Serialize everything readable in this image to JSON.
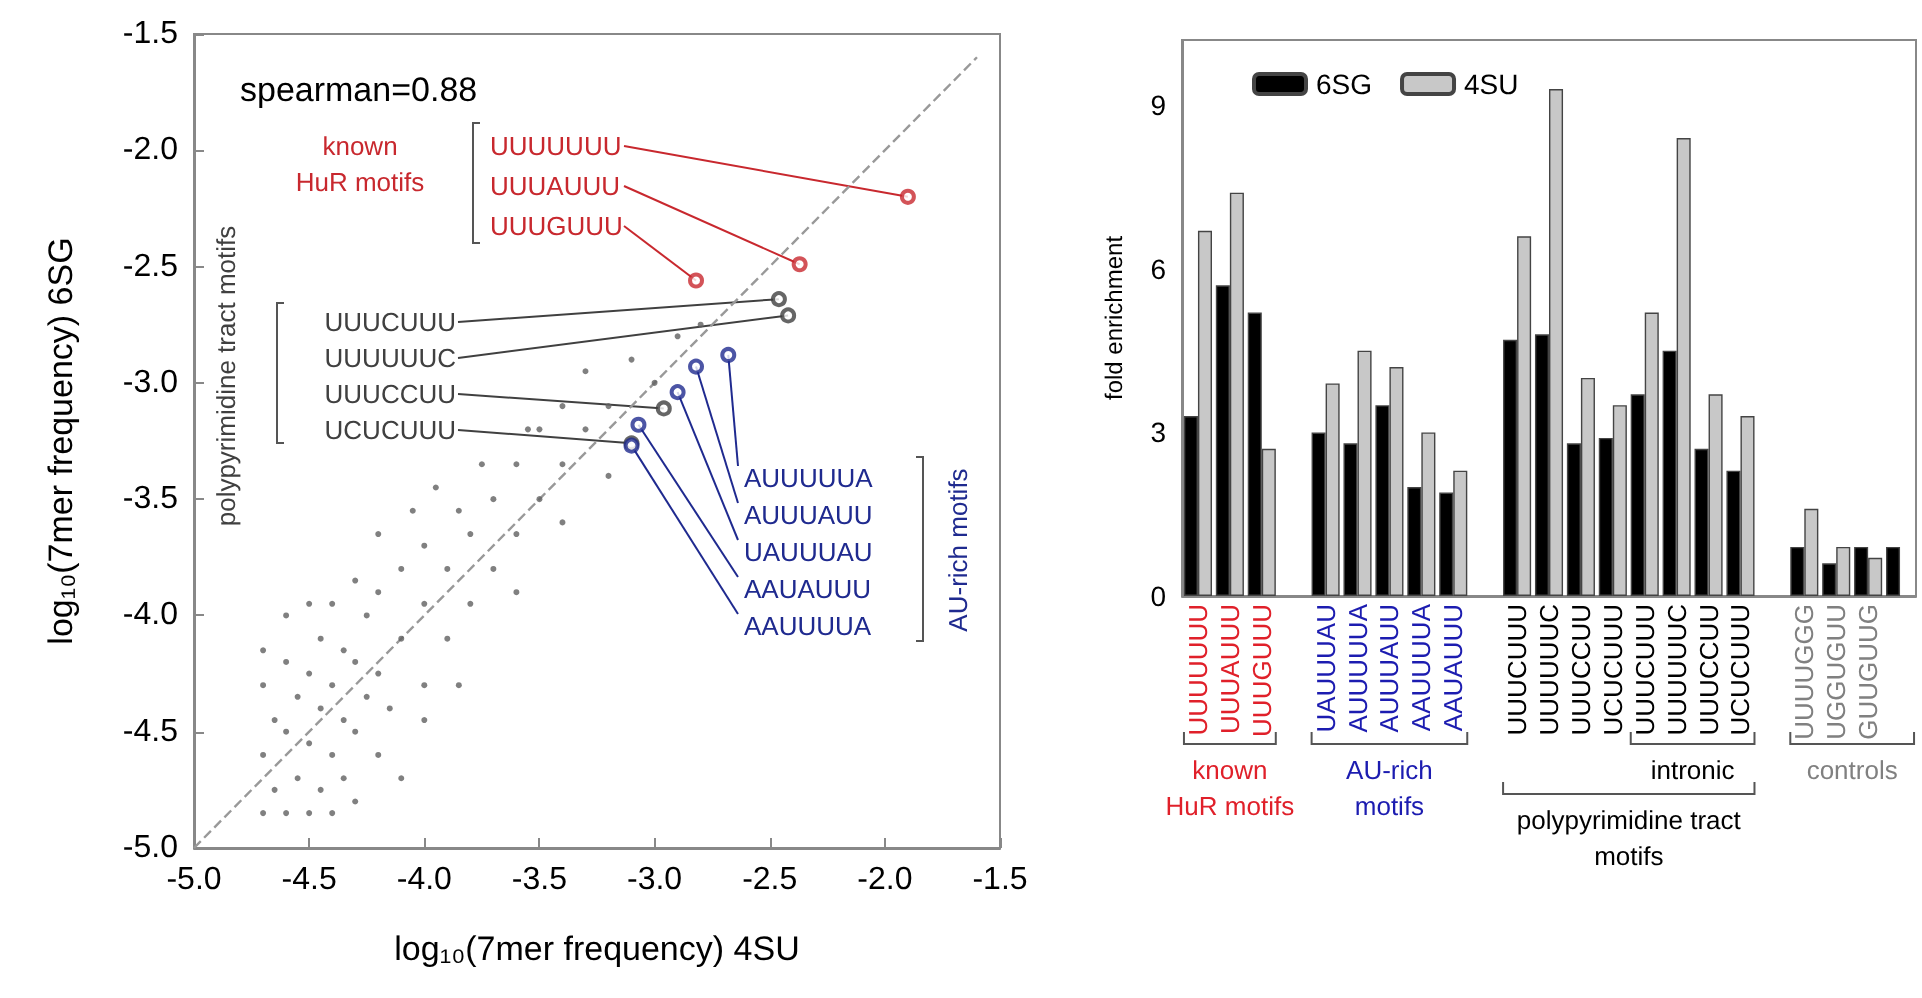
{
  "chart_data": [
    {
      "type": "scatter",
      "xlabel": "log₁₀(7mer frequency) 4SU",
      "ylabel": "log₁₀(7mer frequency) 6SG",
      "xlim": [
        -5,
        -1.5
      ],
      "xticks": [
        {
          "value": -5,
          "label": "-5.0"
        },
        -4.5,
        {
          "value": -4,
          "label": "-4.0"
        },
        -3.5,
        {
          "value": -3,
          "label": "-3.0"
        },
        -2.5,
        {
          "value": -2,
          "label": "-2.0"
        },
        -1.5
      ],
      "ylim": [
        -5,
        -1.5
      ],
      "yticks": [
        {
          "value": -5,
          "label": "-5.0"
        },
        -4.5,
        {
          "value": -4,
          "label": "-4.0"
        },
        -3.5,
        {
          "value": -3,
          "label": "-3.0"
        },
        -2.5,
        {
          "value": -2,
          "label": "-2.0"
        },
        -1.5
      ],
      "grid": false,
      "legend": false,
      "marker": "circle",
      "series": [
        {
          "color": "#606060",
          "x": [
            -4.7,
            -4.7,
            -4.7,
            -4.7,
            -4.65,
            -4.65,
            -4.6,
            -4.6,
            -4.6,
            -4.6,
            -4.55,
            -4.55,
            -4.5,
            -4.5,
            -4.5,
            -4.5,
            -4.45,
            -4.45,
            -4.45,
            -4.4,
            -4.4,
            -4.4,
            -4.4,
            -4.35,
            -4.35,
            -4.35,
            -4.3,
            -4.3,
            -4.3,
            -4.3,
            -4.25,
            -4.25,
            -4.2,
            -4.2,
            -4.2,
            -4.2,
            -4.15,
            -4.1,
            -4.1,
            -4.1,
            -4.05,
            -4.0,
            -4.0,
            -4.0,
            -3.95,
            -3.9,
            -3.9,
            -3.85,
            -3.8,
            -3.8,
            -3.75,
            -3.7,
            -3.7,
            -3.6,
            -3.6,
            -3.55,
            -3.5,
            -3.5,
            -3.4,
            -3.4,
            -3.3,
            -3.3,
            -3.2,
            -3.1,
            -3.0,
            -2.9,
            -2.8,
            -3.6,
            -3.4,
            -3.2,
            -4.0,
            -3.85
          ],
          "values": [
            -4.85,
            -4.6,
            -4.3,
            -4.15,
            -4.75,
            -4.45,
            -4.85,
            -4.5,
            -4.2,
            -4.0,
            -4.7,
            -4.35,
            -4.85,
            -4.55,
            -4.25,
            -3.95,
            -4.75,
            -4.4,
            -4.1,
            -4.85,
            -4.6,
            -4.3,
            -3.95,
            -4.7,
            -4.45,
            -4.15,
            -4.8,
            -4.5,
            -4.2,
            -3.85,
            -4.35,
            -4.0,
            -4.6,
            -4.25,
            -3.9,
            -3.65,
            -4.4,
            -4.1,
            -3.8,
            -4.7,
            -3.55,
            -4.3,
            -3.95,
            -3.7,
            -3.45,
            -4.1,
            -3.8,
            -3.55,
            -3.95,
            -3.65,
            -3.35,
            -3.8,
            -3.5,
            -3.65,
            -3.35,
            -3.2,
            -3.5,
            -3.2,
            -3.35,
            -3.1,
            -3.2,
            -2.95,
            -3.1,
            -2.9,
            -3.0,
            -2.8,
            -2.75,
            -3.9,
            -3.6,
            -3.4,
            -4.45,
            -4.3
          ]
        },
        {
          "name": "known HuR motifs",
          "color": "#c8282e",
          "x": [
            -1.9,
            -2.37,
            -2.82
          ],
          "values": [
            -2.2,
            -2.49,
            -2.56
          ]
        },
        {
          "name": "polypyrimidine tract motifs",
          "color": "#404040",
          "x": [
            -2.46,
            -2.42,
            -2.96,
            -3.1
          ],
          "values": [
            -2.64,
            -2.71,
            -3.11,
            -3.26
          ]
        },
        {
          "name": "AU-rich motifs",
          "color": "#1f2a8f",
          "x": [
            -2.68,
            -2.82,
            -2.9,
            -3.07,
            -3.1
          ],
          "values": [
            -2.88,
            -2.93,
            -3.04,
            -3.18,
            -3.27
          ]
        },
        {
          "type": "line",
          "color": "#999999",
          "line_style": "dashed",
          "marker": "none",
          "x": [
            -5,
            -1.6
          ],
          "values": [
            -5,
            -1.6
          ]
        }
      ],
      "annotations": [
        "spearman=0.88",
        {
          "text": "UUUUUUU",
          "x": -1.9,
          "y": -2.2
        },
        {
          "text": "UUUAUUU",
          "x": -2.37,
          "y": -2.49
        },
        {
          "text": "UUUGUUU",
          "x": -2.82,
          "y": -2.56
        },
        {
          "text": "UUUCUUU",
          "x": -2.46,
          "y": -2.64
        },
        {
          "text": "UUUUUUC",
          "x": -2.42,
          "y": -2.71
        },
        {
          "text": "UUUCCUU",
          "x": -2.96,
          "y": -3.11
        },
        {
          "text": "UCUCUUU",
          "x": -3.1,
          "y": -3.26
        },
        {
          "text": "AUUUUUA",
          "x": -2.68,
          "y": -2.88
        },
        {
          "text": "AUUUAUU",
          "x": -2.82,
          "y": -2.93
        },
        {
          "text": "UAUUUAU",
          "x": -2.9,
          "y": -3.04
        },
        {
          "text": "AAUAUUU",
          "x": -3.07,
          "y": -3.18
        },
        {
          "text": "AAUUUUA",
          "x": -3.1,
          "y": -3.27
        }
      ]
    },
    {
      "type": "bar",
      "ylabel": "fold enrichment",
      "ylim": [
        0,
        10.2
      ],
      "yticks": [
        0,
        3,
        6,
        9
      ],
      "grid": false,
      "legend": "top left",
      "categories": [
        "UUUUUUU",
        "UUUAUUU",
        "UUUGUUU",
        null,
        "UAUUUAU",
        "AUUUUUA",
        "AUUUAUU",
        "AAUUUUA",
        "AAUAUUU",
        null,
        "UUUCUUU",
        "UUUUUUC",
        "UUUCCUU",
        "UCUCUUU",
        "UUUCUUU",
        "UUUUUUC",
        "UUUCCUU",
        "UCUCUUU",
        null,
        "UUUUGGG",
        "UGGUGUU",
        "GUUGUUG",
        null
      ],
      "series": [
        {
          "name": "6SG",
          "color": "#000000",
          "values": [
            3.3,
            5.7,
            5.2,
            null,
            3.0,
            2.8,
            3.5,
            2.0,
            1.9,
            null,
            4.7,
            4.8,
            2.8,
            2.9,
            3.7,
            4.5,
            2.7,
            2.3,
            null,
            0.9,
            0.6,
            0.9,
            0.9
          ]
        },
        {
          "name": "4SU",
          "color": "#c8c8c8",
          "values": [
            6.7,
            7.4,
            2.7,
            null,
            3.9,
            4.5,
            4.2,
            3.0,
            2.3,
            null,
            6.6,
            9.3,
            4.0,
            3.5,
            5.2,
            8.4,
            3.7,
            3.3,
            null,
            1.6,
            0.9,
            0.7,
            null
          ]
        }
      ],
      "annotations": [
        "known HuR motifs",
        "AU-rich motifs",
        "intronic",
        "polypyrimidine tract motifs",
        "controls"
      ]
    }
  ]
}
